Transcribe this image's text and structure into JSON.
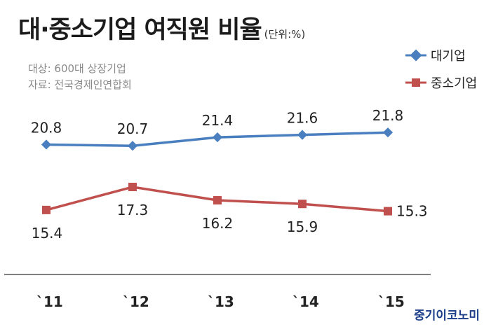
{
  "header": {
    "title": "대·중소기업 여직원 비율",
    "unit": "(단위:%)"
  },
  "source": {
    "line1": "대상: 600대 상장기업",
    "line2": "자료: 전국경제인연합회"
  },
  "logo": "중기이코노미",
  "colors": {
    "large": "#4a7fbf",
    "sme": "#c0504d",
    "axis": "#555555"
  },
  "chart_data": {
    "type": "line",
    "title": "대·중소기업 여직원 비율",
    "categories": [
      "`11",
      "`12",
      "`13",
      "`14",
      "`15"
    ],
    "series": [
      {
        "name": "대기업",
        "values": [
          20.8,
          20.7,
          21.4,
          21.6,
          21.8
        ]
      },
      {
        "name": "중소기업",
        "values": [
          15.4,
          17.3,
          16.2,
          15.9,
          15.3
        ]
      }
    ],
    "legend": "top-right",
    "grid": false
  }
}
